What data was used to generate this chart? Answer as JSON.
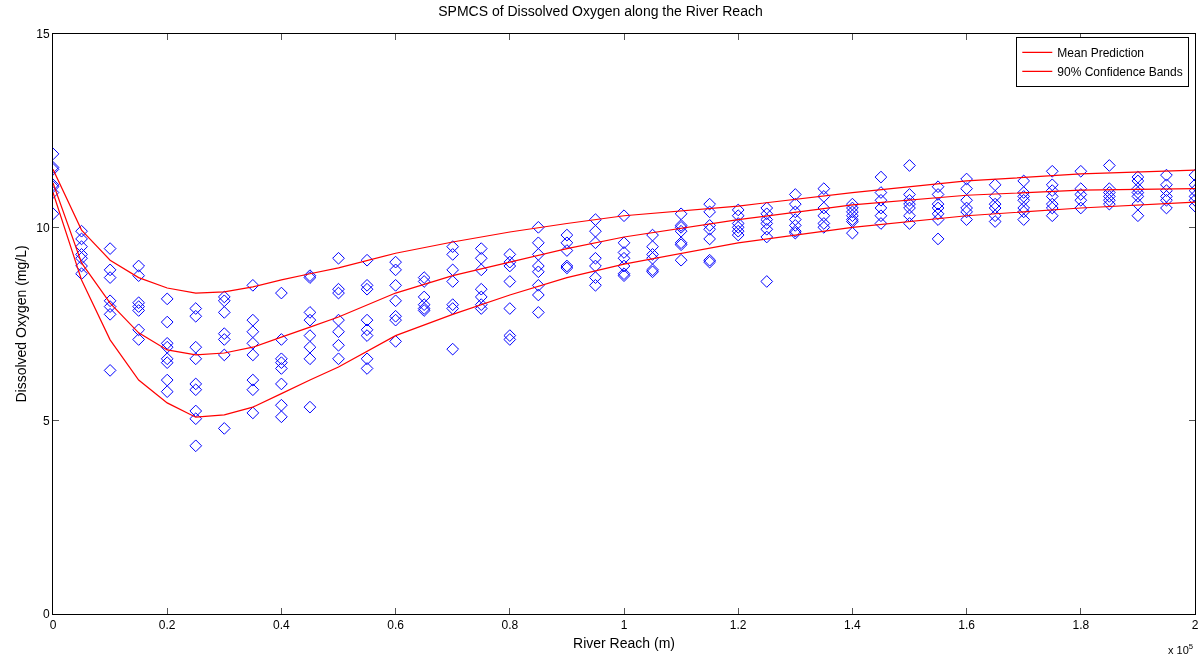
{
  "chart_data": {
    "type": "scatter",
    "title": "SPMCS of Dissolved Oxygen along the River Reach",
    "xlabel": "River Reach (m)",
    "ylabel": "Dissolved Oxygen (mg/L)",
    "annotations": [
      "x 10$^{5}$"
    ],
    "xlim": [
      0,
      2
    ],
    "xticks": [
      0,
      0.2,
      0.4,
      0.6,
      0.8,
      1,
      1.2,
      1.4,
      1.6,
      1.8,
      2
    ],
    "ylim": [
      0,
      15
    ],
    "yticks": [
      0,
      5,
      10,
      15
    ],
    "grid": false,
    "legend": "top right",
    "series": [
      {
        "marker": "diamond",
        "color": "#0000ff",
        "x": [
          0,
          0,
          0,
          0,
          0,
          0,
          0,
          0.05,
          0.05,
          0.05,
          0.05,
          0.05,
          0.05,
          0.05,
          0.1,
          0.1,
          0.1,
          0.1,
          0.1,
          0.1,
          0.1,
          0.15,
          0.15,
          0.15,
          0.15,
          0.15,
          0.15,
          0.15,
          0.2,
          0.2,
          0.2,
          0.2,
          0.2,
          0.2,
          0.2,
          0.2,
          0.25,
          0.25,
          0.25,
          0.25,
          0.25,
          0.25,
          0.25,
          0.25,
          0.25,
          0.3,
          0.3,
          0.3,
          0.3,
          0.3,
          0.3,
          0.3,
          0.35,
          0.35,
          0.35,
          0.35,
          0.35,
          0.35,
          0.35,
          0.35,
          0.4,
          0.4,
          0.4,
          0.4,
          0.4,
          0.4,
          0.4,
          0.4,
          0.45,
          0.45,
          0.45,
          0.45,
          0.45,
          0.45,
          0.45,
          0.45,
          0.5,
          0.5,
          0.5,
          0.5,
          0.5,
          0.5,
          0.5,
          0.55,
          0.55,
          0.55,
          0.55,
          0.55,
          0.55,
          0.55,
          0.55,
          0.6,
          0.6,
          0.6,
          0.6,
          0.6,
          0.6,
          0.6,
          0.65,
          0.65,
          0.65,
          0.65,
          0.65,
          0.65,
          0.7,
          0.7,
          0.7,
          0.7,
          0.7,
          0.7,
          0.7,
          0.75,
          0.75,
          0.75,
          0.75,
          0.75,
          0.75,
          0.75,
          0.8,
          0.8,
          0.8,
          0.8,
          0.8,
          0.8,
          0.8,
          0.85,
          0.85,
          0.85,
          0.85,
          0.85,
          0.85,
          0.85,
          0.85,
          0.9,
          0.9,
          0.9,
          0.9,
          0.9,
          0.95,
          0.95,
          0.95,
          0.95,
          0.95,
          0.95,
          0.95,
          1,
          1,
          1,
          1,
          1,
          1,
          1,
          1.05,
          1.05,
          1.05,
          1.05,
          1.05,
          1.05,
          1.1,
          1.1,
          1.1,
          1.1,
          1.1,
          1.1,
          1.1,
          1.15,
          1.15,
          1.15,
          1.15,
          1.15,
          1.15,
          1.15,
          1.2,
          1.2,
          1.2,
          1.2,
          1.2,
          1.2,
          1.25,
          1.25,
          1.25,
          1.25,
          1.25,
          1.25,
          1.25,
          1.3,
          1.3,
          1.3,
          1.3,
          1.3,
          1.3,
          1.3,
          1.35,
          1.35,
          1.35,
          1.35,
          1.35,
          1.35,
          1.4,
          1.4,
          1.4,
          1.4,
          1.4,
          1.4,
          1.4,
          1.45,
          1.45,
          1.45,
          1.45,
          1.45,
          1.45,
          1.5,
          1.5,
          1.5,
          1.5,
          1.5,
          1.5,
          1.5,
          1.55,
          1.55,
          1.55,
          1.55,
          1.55,
          1.55,
          1.55,
          1.6,
          1.6,
          1.6,
          1.6,
          1.6,
          1.6,
          1.65,
          1.65,
          1.65,
          1.65,
          1.65,
          1.65,
          1.7,
          1.7,
          1.7,
          1.7,
          1.7,
          1.7,
          1.7,
          1.75,
          1.75,
          1.75,
          1.75,
          1.75,
          1.75,
          1.75,
          1.8,
          1.8,
          1.8,
          1.8,
          1.8,
          1.85,
          1.85,
          1.85,
          1.85,
          1.85,
          1.85,
          1.9,
          1.9,
          1.9,
          1.9,
          1.9,
          1.9,
          1.9,
          1.95,
          1.95,
          1.95,
          1.95,
          1.95,
          1.95,
          2,
          2,
          2,
          2,
          2,
          2
        ],
        "values": [
          11.9,
          11.55,
          11.5,
          11.1,
          11.05,
          10.9,
          10.35,
          9.9,
          9.7,
          9.5,
          9.3,
          9.2,
          9.0,
          8.8,
          9.45,
          8.9,
          8.7,
          8.1,
          7.95,
          7.75,
          6.3,
          9.0,
          8.75,
          8.05,
          7.95,
          7.85,
          7.35,
          7.1,
          8.15,
          7.55,
          7.0,
          6.9,
          6.6,
          6.5,
          6.05,
          5.75,
          7.9,
          7.7,
          6.9,
          6.6,
          5.95,
          5.8,
          5.25,
          5.05,
          4.35,
          8.2,
          8.1,
          7.8,
          7.25,
          7.1,
          6.7,
          4.8,
          8.5,
          7.6,
          7.3,
          7.0,
          6.7,
          6.05,
          5.8,
          5.2,
          8.3,
          7.1,
          6.6,
          6.5,
          6.35,
          5.95,
          5.4,
          5.1,
          8.75,
          8.7,
          7.8,
          7.6,
          7.2,
          6.9,
          6.6,
          5.35,
          9.2,
          8.4,
          8.3,
          7.6,
          7.3,
          6.95,
          6.6,
          9.15,
          8.5,
          8.4,
          7.6,
          7.35,
          7.2,
          6.6,
          6.35,
          9.1,
          8.9,
          8.5,
          8.1,
          7.7,
          7.6,
          7.05,
          8.7,
          8.6,
          8.2,
          8.0,
          7.9,
          7.85,
          9.5,
          9.3,
          8.9,
          8.6,
          8.0,
          7.9,
          6.85,
          9.45,
          9.2,
          8.9,
          8.4,
          8.2,
          8.0,
          7.9,
          9.3,
          9.1,
          9.0,
          8.6,
          7.9,
          7.2,
          7.1,
          10.0,
          9.6,
          9.3,
          9.0,
          8.85,
          8.5,
          8.25,
          7.8,
          9.8,
          9.6,
          9.4,
          9.0,
          8.95,
          10.2,
          9.9,
          9.6,
          9.2,
          9.0,
          8.7,
          8.5,
          10.3,
          9.6,
          9.35,
          9.2,
          9.0,
          8.8,
          8.75,
          9.8,
          9.5,
          9.3,
          9.2,
          8.9,
          8.85,
          10.35,
          10.05,
          10.0,
          9.9,
          9.6,
          9.55,
          9.15,
          10.6,
          10.4,
          10.05,
          9.95,
          9.7,
          9.15,
          9.1,
          10.45,
          10.3,
          10.1,
          10.0,
          9.9,
          9.8,
          10.5,
          10.35,
          10.2,
          10.1,
          9.95,
          9.75,
          8.6,
          10.85,
          10.6,
          10.4,
          10.2,
          10.05,
          9.9,
          9.85,
          11.0,
          10.8,
          10.5,
          10.3,
          10.1,
          10.0,
          10.6,
          10.5,
          10.4,
          10.3,
          10.2,
          10.15,
          9.85,
          11.3,
          10.9,
          10.7,
          10.5,
          10.3,
          10.1,
          11.6,
          10.85,
          10.7,
          10.6,
          10.5,
          10.3,
          10.1,
          11.05,
          10.85,
          10.6,
          10.5,
          10.35,
          10.2,
          9.7,
          11.25,
          11.0,
          10.7,
          10.5,
          10.4,
          10.2,
          11.1,
          10.8,
          10.6,
          10.5,
          10.3,
          10.15,
          11.2,
          10.9,
          10.8,
          10.7,
          10.5,
          10.4,
          10.2,
          11.45,
          11.1,
          10.95,
          10.8,
          10.6,
          10.5,
          10.3,
          11.45,
          11.0,
          10.85,
          10.7,
          10.5,
          11.6,
          11.0,
          10.9,
          10.8,
          10.7,
          10.6,
          11.3,
          11.2,
          11.0,
          10.9,
          10.8,
          10.6,
          10.3,
          11.35,
          11.1,
          10.95,
          10.8,
          10.7,
          10.5,
          11.35,
          11.1,
          10.95,
          10.8,
          10.7,
          10.55
        ]
      },
      {
        "type": "line",
        "name": "Mean Prediction",
        "marker": "none",
        "line_style": "solid",
        "color": "#ff0000",
        "x": [
          0,
          0.05,
          0.1,
          0.15,
          0.2,
          0.25,
          0.3,
          0.35,
          0.4,
          0.45,
          0.5,
          0.6,
          0.7,
          0.8,
          0.9,
          1,
          1.2,
          1.4,
          1.6,
          1.8,
          2
        ],
        "values": [
          11.15,
          9.08,
          8.04,
          7.27,
          6.83,
          6.7,
          6.75,
          6.9,
          7.16,
          7.42,
          7.68,
          8.3,
          8.75,
          9.1,
          9.45,
          9.75,
          10.2,
          10.58,
          10.83,
          10.96,
          11.0
        ]
      },
      {
        "type": "line",
        "name": "90% Confidence Bands",
        "marker": "none",
        "line_style": "solid",
        "color": "#ff0000",
        "x": [
          0,
          0.05,
          0.1,
          0.15,
          0.2,
          0.25,
          0.3,
          0.35,
          0.4,
          0.45,
          0.5,
          0.6,
          0.7,
          0.8,
          0.9,
          1,
          1.2,
          1.4,
          1.6,
          1.8,
          2
        ],
        "values": [
          11.5,
          9.93,
          9.15,
          8.7,
          8.43,
          8.3,
          8.33,
          8.46,
          8.64,
          8.8,
          8.95,
          9.33,
          9.62,
          9.88,
          10.1,
          10.3,
          10.55,
          10.9,
          11.2,
          11.38,
          11.48
        ]
      },
      {
        "type": "line",
        "marker": "none",
        "line_style": "solid",
        "color": "#ff0000",
        "x": [
          0,
          0.05,
          0.1,
          0.15,
          0.2,
          0.25,
          0.3,
          0.35,
          0.4,
          0.45,
          0.5,
          0.6,
          0.7,
          0.8,
          0.9,
          1,
          1.2,
          1.4,
          1.6,
          1.8,
          2
        ],
        "values": [
          10.9,
          8.64,
          7.09,
          6.05,
          5.46,
          5.09,
          5.15,
          5.35,
          5.7,
          6.05,
          6.39,
          7.2,
          7.75,
          8.25,
          8.7,
          9.05,
          9.6,
          10.0,
          10.3,
          10.5,
          10.65
        ]
      }
    ]
  }
}
